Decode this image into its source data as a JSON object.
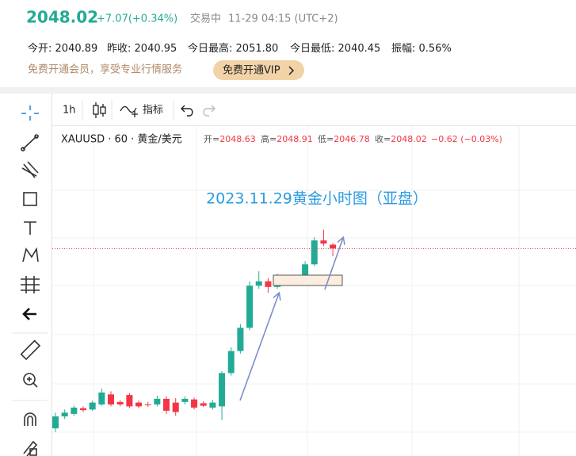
{
  "header": {
    "price": "2048.02",
    "change": "+7.07(+0.34%)",
    "status": "交易中",
    "time": "11-29 04:15 (UTC+2)"
  },
  "stats": [
    {
      "label": "今开:",
      "value": "2040.89"
    },
    {
      "label": "昨收:",
      "value": "2040.95"
    },
    {
      "label": "今日最高:",
      "value": "2051.80"
    },
    {
      "label": "今日最低:",
      "value": "2040.45"
    },
    {
      "label": "振幅:",
      "value": "0.56%"
    }
  ],
  "promo": {
    "text": "免费开通会员，享受专业行情服务",
    "button": "免费开通VIP"
  },
  "toolbar": {
    "interval": "1h",
    "indicator": "指标"
  },
  "legend": {
    "symbol_line": "XAUUSD · 60 · 黄金/美元",
    "labels": [
      "开=",
      "高=",
      "低=",
      "收="
    ],
    "change": "−0.62 (−0.03%)"
  },
  "chart_data": {
    "type": "candlestick",
    "annotation": "2023.11.29黄金小时图（亚盘）",
    "ylim": [
      2015,
      2068
    ],
    "up_color": "#22ab94",
    "down_color": "#f23645",
    "candles": {
      "open": [
        2019.4,
        2021.3,
        2021.7,
        2022.6,
        2022.4,
        2023.2,
        2024.8,
        2023.6,
        2024.7,
        2023.5,
        2023.2,
        2023.2,
        2024.1,
        2023.5,
        2023.6,
        2024.0,
        2023.4,
        2022.7,
        2022.9,
        2028.2,
        2031.7,
        2035.4,
        2042.1,
        2042.8,
        2041.9,
        2043.4,
        2043.0,
        2042.9,
        2045.5,
        2049.3,
        2048.63
      ],
      "high": [
        2021.9,
        2022.4,
        2023.0,
        2022.9,
        2023.8,
        2025.7,
        2025.3,
        2023.9,
        2025.0,
        2023.8,
        2023.6,
        2024.6,
        2024.5,
        2024.2,
        2024.5,
        2024.3,
        2023.7,
        2023.9,
        2028.5,
        2032.3,
        2036.0,
        2042.8,
        2044.4,
        2043.3,
        2044.0,
        2043.8,
        2043.3,
        2046.0,
        2049.8,
        2051.0,
        2048.91
      ],
      "low": [
        2018.8,
        2020.9,
        2021.4,
        2022.0,
        2022.2,
        2023.0,
        2022.9,
        2022.9,
        2022.6,
        2022.6,
        2022.8,
        2022.9,
        2021.7,
        2021.4,
        2023.2,
        2022.4,
        2022.8,
        2022.4,
        2020.7,
        2027.8,
        2031.3,
        2035.0,
        2041.6,
        2041.0,
        2041.6,
        2042.5,
        2042.3,
        2042.6,
        2045.2,
        2048.4,
        2046.78
      ],
      "close": [
        2021.3,
        2021.9,
        2022.7,
        2022.3,
        2023.5,
        2025.1,
        2023.2,
        2023.2,
        2022.9,
        2022.9,
        2023.1,
        2024.1,
        2022.2,
        2022.0,
        2024.1,
        2022.7,
        2023.0,
        2023.5,
        2028.2,
        2031.7,
        2035.4,
        2042.1,
        2042.8,
        2041.9,
        2043.6,
        2042.9,
        2042.9,
        2045.5,
        2049.3,
        2048.8,
        2048.02
      ]
    }
  }
}
